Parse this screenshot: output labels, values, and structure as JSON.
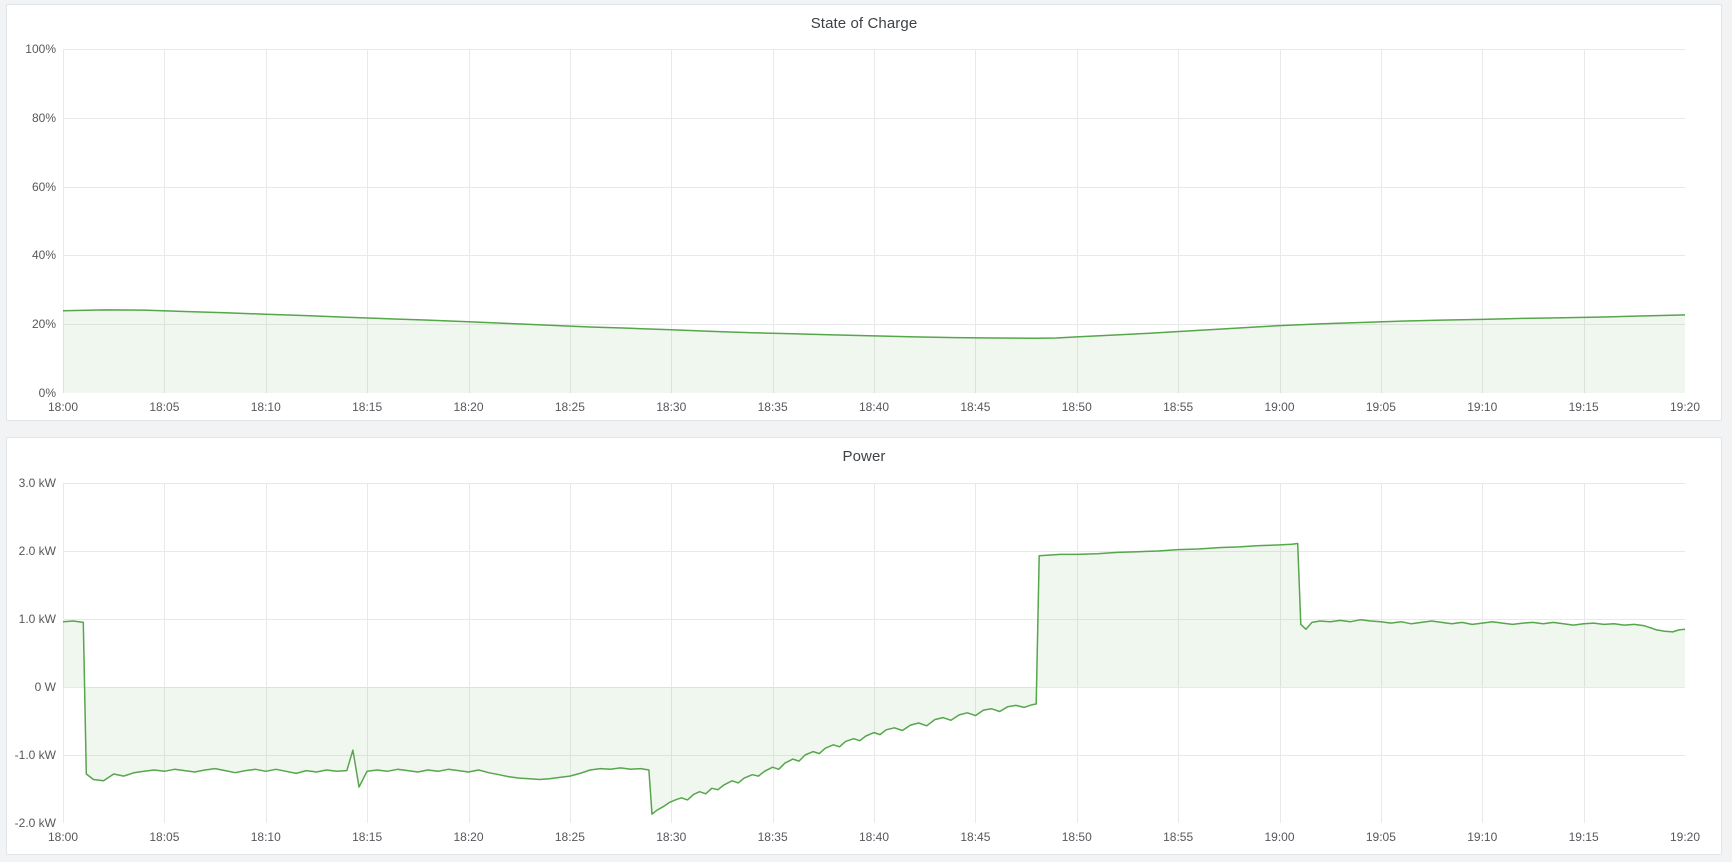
{
  "theme": {
    "page_bg": "#f2f3f4",
    "panel_bg": "#ffffff",
    "panel_border": "#e2e5e7",
    "grid_color": "#e8e9ea",
    "axis_text_color": "#55585c",
    "title_color": "#3e4247",
    "series_green": "#56A64B",
    "series_fill": "rgba(86,166,75,0.09)"
  },
  "chart_data": [
    {
      "id": "soc",
      "type": "area",
      "title": "State of Charge",
      "legend": "none",
      "grid": true,
      "xlim": [
        0,
        80
      ],
      "ylim": [
        0,
        100
      ],
      "x_unit": "minutes after 18:00",
      "x_tick_minutes": [
        0,
        5,
        10,
        15,
        20,
        25,
        30,
        35,
        40,
        45,
        50,
        55,
        60,
        65,
        70,
        75,
        80
      ],
      "x_tick_labels": [
        "18:00",
        "18:05",
        "18:10",
        "18:15",
        "18:20",
        "18:25",
        "18:30",
        "18:35",
        "18:40",
        "18:45",
        "18:50",
        "18:55",
        "19:00",
        "19:05",
        "19:10",
        "19:15",
        "19:20"
      ],
      "y_ticks": [
        {
          "v": 100,
          "label": "100%"
        },
        {
          "v": 80,
          "label": "80%"
        },
        {
          "v": 60,
          "label": "60%"
        },
        {
          "v": 40,
          "label": "40%"
        },
        {
          "v": 20,
          "label": "20%"
        },
        {
          "v": 0,
          "label": "0%"
        }
      ],
      "series": [
        {
          "name": "State of Charge",
          "unit": "%",
          "points": [
            [
              0,
              23.9
            ],
            [
              2,
              24.15
            ],
            [
              4,
              24.1
            ],
            [
              6,
              23.7
            ],
            [
              8,
              23.3
            ],
            [
              10,
              22.9
            ],
            [
              12,
              22.5
            ],
            [
              14,
              22.0
            ],
            [
              16,
              21.6
            ],
            [
              18,
              21.2
            ],
            [
              20,
              20.7
            ],
            [
              22,
              20.2
            ],
            [
              24,
              19.7
            ],
            [
              26,
              19.2
            ],
            [
              28,
              18.8
            ],
            [
              30,
              18.4
            ],
            [
              32,
              17.9
            ],
            [
              34,
              17.5
            ],
            [
              36,
              17.2
            ],
            [
              38,
              16.9
            ],
            [
              40,
              16.6
            ],
            [
              42,
              16.3
            ],
            [
              44,
              16.1
            ],
            [
              46,
              16.0
            ],
            [
              48,
              15.9
            ],
            [
              49,
              16.0
            ],
            [
              50,
              16.3
            ],
            [
              52,
              16.9
            ],
            [
              54,
              17.5
            ],
            [
              56,
              18.2
            ],
            [
              58,
              18.9
            ],
            [
              60,
              19.6
            ],
            [
              62,
              20.1
            ],
            [
              64,
              20.5
            ],
            [
              66,
              20.9
            ],
            [
              68,
              21.2
            ],
            [
              70,
              21.4
            ],
            [
              72,
              21.7
            ],
            [
              74,
              21.9
            ],
            [
              76,
              22.1
            ],
            [
              78,
              22.4
            ],
            [
              80,
              22.7
            ]
          ]
        }
      ]
    },
    {
      "id": "power",
      "type": "area",
      "title": "Power",
      "legend": "none",
      "grid": true,
      "xlim": [
        0,
        80
      ],
      "ylim": [
        -2,
        3
      ],
      "x_unit": "minutes after 18:00",
      "x_tick_minutes": [
        0,
        5,
        10,
        15,
        20,
        25,
        30,
        35,
        40,
        45,
        50,
        55,
        60,
        65,
        70,
        75,
        80
      ],
      "x_tick_labels": [
        "18:00",
        "18:05",
        "18:10",
        "18:15",
        "18:20",
        "18:25",
        "18:30",
        "18:35",
        "18:40",
        "18:45",
        "18:50",
        "18:55",
        "19:00",
        "19:05",
        "19:10",
        "19:15",
        "19:20"
      ],
      "y_ticks": [
        {
          "v": 3,
          "label": "3.0 kW"
        },
        {
          "v": 2,
          "label": "2.0 kW"
        },
        {
          "v": 1,
          "label": "1.0 kW"
        },
        {
          "v": 0,
          "label": "0 W"
        },
        {
          "v": -1,
          "label": "-1.0 kW"
        },
        {
          "v": -2,
          "label": "-2.0 kW"
        }
      ],
      "series": [
        {
          "name": "Power",
          "unit": "kW",
          "points": [
            [
              0,
              0.96
            ],
            [
              0.5,
              0.97
            ],
            [
              1,
              0.95
            ],
            [
              1.15,
              -1.28
            ],
            [
              1.5,
              -1.36
            ],
            [
              2,
              -1.38
            ],
            [
              2.5,
              -1.28
            ],
            [
              3,
              -1.31
            ],
            [
              3.5,
              -1.26
            ],
            [
              4,
              -1.24
            ],
            [
              4.5,
              -1.22
            ],
            [
              5,
              -1.24
            ],
            [
              5.5,
              -1.21
            ],
            [
              6,
              -1.23
            ],
            [
              6.5,
              -1.25
            ],
            [
              7,
              -1.22
            ],
            [
              7.5,
              -1.2
            ],
            [
              8,
              -1.23
            ],
            [
              8.5,
              -1.26
            ],
            [
              9,
              -1.23
            ],
            [
              9.5,
              -1.21
            ],
            [
              10,
              -1.24
            ],
            [
              10.5,
              -1.21
            ],
            [
              11,
              -1.24
            ],
            [
              11.5,
              -1.27
            ],
            [
              12,
              -1.23
            ],
            [
              12.5,
              -1.25
            ],
            [
              13,
              -1.22
            ],
            [
              13.5,
              -1.24
            ],
            [
              14,
              -1.23
            ],
            [
              14.3,
              -0.93
            ],
            [
              14.6,
              -1.47
            ],
            [
              15,
              -1.24
            ],
            [
              15.5,
              -1.22
            ],
            [
              16,
              -1.24
            ],
            [
              16.5,
              -1.21
            ],
            [
              17,
              -1.23
            ],
            [
              17.5,
              -1.25
            ],
            [
              18,
              -1.22
            ],
            [
              18.5,
              -1.24
            ],
            [
              19,
              -1.21
            ],
            [
              19.5,
              -1.23
            ],
            [
              20,
              -1.25
            ],
            [
              20.5,
              -1.22
            ],
            [
              21,
              -1.26
            ],
            [
              21.5,
              -1.29
            ],
            [
              22,
              -1.32
            ],
            [
              22.5,
              -1.34
            ],
            [
              23,
              -1.35
            ],
            [
              23.5,
              -1.36
            ],
            [
              24,
              -1.35
            ],
            [
              24.5,
              -1.33
            ],
            [
              25,
              -1.31
            ],
            [
              25.5,
              -1.27
            ],
            [
              26,
              -1.22
            ],
            [
              26.5,
              -1.2
            ],
            [
              27,
              -1.21
            ],
            [
              27.5,
              -1.19
            ],
            [
              28,
              -1.21
            ],
            [
              28.5,
              -1.2
            ],
            [
              28.9,
              -1.22
            ],
            [
              29.05,
              -1.87
            ],
            [
              29.3,
              -1.81
            ],
            [
              29.6,
              -1.76
            ],
            [
              29.9,
              -1.7
            ],
            [
              30.2,
              -1.66
            ],
            [
              30.5,
              -1.63
            ],
            [
              30.8,
              -1.66
            ],
            [
              31.1,
              -1.58
            ],
            [
              31.4,
              -1.54
            ],
            [
              31.7,
              -1.57
            ],
            [
              32,
              -1.49
            ],
            [
              32.3,
              -1.51
            ],
            [
              32.6,
              -1.44
            ],
            [
              33,
              -1.38
            ],
            [
              33.3,
              -1.41
            ],
            [
              33.6,
              -1.34
            ],
            [
              34,
              -1.29
            ],
            [
              34.3,
              -1.31
            ],
            [
              34.6,
              -1.24
            ],
            [
              35,
              -1.18
            ],
            [
              35.3,
              -1.21
            ],
            [
              35.6,
              -1.12
            ],
            [
              36,
              -1.06
            ],
            [
              36.3,
              -1.09
            ],
            [
              36.6,
              -1.0
            ],
            [
              37,
              -0.95
            ],
            [
              37.3,
              -0.98
            ],
            [
              37.6,
              -0.9
            ],
            [
              38,
              -0.85
            ],
            [
              38.3,
              -0.88
            ],
            [
              38.6,
              -0.8
            ],
            [
              39,
              -0.76
            ],
            [
              39.3,
              -0.79
            ],
            [
              39.6,
              -0.72
            ],
            [
              40,
              -0.67
            ],
            [
              40.3,
              -0.7
            ],
            [
              40.6,
              -0.63
            ],
            [
              41,
              -0.6
            ],
            [
              41.4,
              -0.64
            ],
            [
              41.8,
              -0.56
            ],
            [
              42.2,
              -0.53
            ],
            [
              42.6,
              -0.57
            ],
            [
              43,
              -0.48
            ],
            [
              43.4,
              -0.45
            ],
            [
              43.8,
              -0.49
            ],
            [
              44.2,
              -0.41
            ],
            [
              44.6,
              -0.38
            ],
            [
              45,
              -0.42
            ],
            [
              45.4,
              -0.34
            ],
            [
              45.8,
              -0.32
            ],
            [
              46.2,
              -0.36
            ],
            [
              46.6,
              -0.29
            ],
            [
              47,
              -0.27
            ],
            [
              47.4,
              -0.3
            ],
            [
              47.8,
              -0.26
            ],
            [
              48,
              -0.25
            ],
            [
              48.15,
              1.93
            ],
            [
              48.6,
              1.94
            ],
            [
              49.2,
              1.95
            ],
            [
              50,
              1.95
            ],
            [
              51,
              1.96
            ],
            [
              52,
              1.98
            ],
            [
              53,
              1.99
            ],
            [
              54,
              2.0
            ],
            [
              55,
              2.02
            ],
            [
              56,
              2.03
            ],
            [
              57,
              2.05
            ],
            [
              58,
              2.06
            ],
            [
              59,
              2.08
            ],
            [
              60,
              2.09
            ],
            [
              60.6,
              2.1
            ],
            [
              60.9,
              2.11
            ],
            [
              61.05,
              0.92
            ],
            [
              61.3,
              0.85
            ],
            [
              61.6,
              0.95
            ],
            [
              62,
              0.97
            ],
            [
              62.5,
              0.96
            ],
            [
              63,
              0.98
            ],
            [
              63.5,
              0.96
            ],
            [
              64,
              0.99
            ],
            [
              64.5,
              0.97
            ],
            [
              65,
              0.96
            ],
            [
              65.5,
              0.94
            ],
            [
              66,
              0.96
            ],
            [
              66.5,
              0.93
            ],
            [
              67,
              0.95
            ],
            [
              67.5,
              0.97
            ],
            [
              68,
              0.95
            ],
            [
              68.5,
              0.93
            ],
            [
              69,
              0.95
            ],
            [
              69.5,
              0.92
            ],
            [
              70,
              0.94
            ],
            [
              70.5,
              0.96
            ],
            [
              71,
              0.94
            ],
            [
              71.5,
              0.92
            ],
            [
              72,
              0.94
            ],
            [
              72.5,
              0.95
            ],
            [
              73,
              0.93
            ],
            [
              73.5,
              0.95
            ],
            [
              74,
              0.93
            ],
            [
              74.5,
              0.91
            ],
            [
              75,
              0.93
            ],
            [
              75.5,
              0.94
            ],
            [
              76,
              0.92
            ],
            [
              76.5,
              0.93
            ],
            [
              77,
              0.91
            ],
            [
              77.5,
              0.92
            ],
            [
              78,
              0.9
            ],
            [
              78.3,
              0.87
            ],
            [
              78.6,
              0.84
            ],
            [
              79,
              0.82
            ],
            [
              79.4,
              0.81
            ],
            [
              79.7,
              0.84
            ],
            [
              80,
              0.85
            ]
          ]
        }
      ]
    }
  ]
}
